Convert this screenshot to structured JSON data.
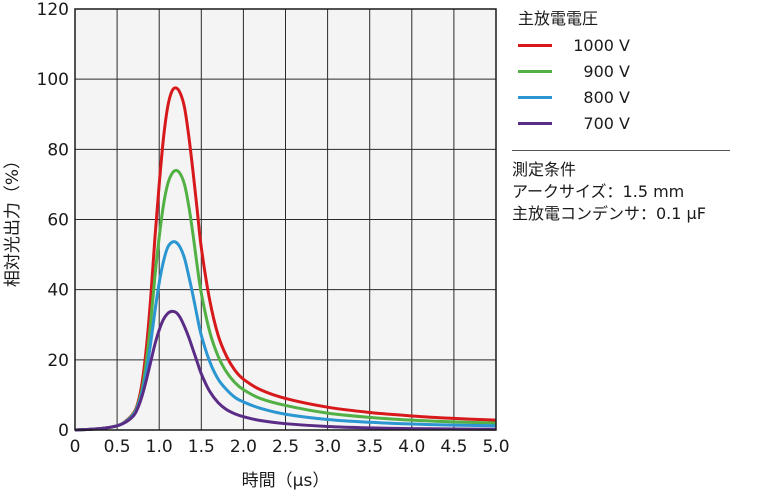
{
  "chart_data": {
    "type": "line",
    "xlabel": "時間（μs）",
    "ylabel": "相対光出力（%）",
    "xlim": [
      0,
      5.0
    ],
    "ylim": [
      0,
      120
    ],
    "xticks": [
      "0",
      "0.5",
      "1.0",
      "1.5",
      "2.0",
      "2.5",
      "3.0",
      "3.5",
      "4.0",
      "4.5",
      "5.0"
    ],
    "yticks": [
      "0",
      "20",
      "40",
      "60",
      "80",
      "100",
      "120"
    ],
    "grid": true,
    "legend_title": "主放電電圧",
    "legend_position": "right",
    "series": [
      {
        "name": "1000 V",
        "color": "#d7191c",
        "x": [
          0,
          0.3,
          0.5,
          0.6,
          0.7,
          0.75,
          0.8,
          0.85,
          0.9,
          0.95,
          1.0,
          1.05,
          1.1,
          1.15,
          1.2,
          1.25,
          1.3,
          1.35,
          1.4,
          1.45,
          1.5,
          1.6,
          1.7,
          1.8,
          1.9,
          2.0,
          2.2,
          2.5,
          3.0,
          3.5,
          4.0,
          4.5,
          5.0
        ],
        "y": [
          0,
          0.4,
          1.2,
          2.5,
          5,
          8,
          14,
          24,
          38,
          55,
          70,
          83,
          92,
          96.5,
          97.5,
          96,
          92,
          84,
          74,
          63,
          52,
          37,
          27,
          21,
          17,
          14.5,
          11.5,
          9,
          6.5,
          5,
          4,
          3.3,
          2.8
        ]
      },
      {
        "name": "900 V",
        "color": "#52b044",
        "x": [
          0,
          0.3,
          0.5,
          0.6,
          0.7,
          0.75,
          0.8,
          0.85,
          0.9,
          0.95,
          1.0,
          1.05,
          1.1,
          1.15,
          1.2,
          1.25,
          1.3,
          1.35,
          1.4,
          1.45,
          1.5,
          1.6,
          1.7,
          1.8,
          1.9,
          2.0,
          2.2,
          2.5,
          3.0,
          3.5,
          4.0,
          4.5,
          5.0
        ],
        "y": [
          0,
          0.4,
          1.2,
          2.4,
          4.8,
          7.5,
          12,
          20,
          31,
          44,
          55,
          64,
          70,
          73,
          74,
          73,
          70,
          64,
          56,
          47,
          39,
          28,
          21,
          16.5,
          13.5,
          11.5,
          9,
          7,
          4.8,
          3.6,
          2.8,
          2.3,
          2.0
        ]
      },
      {
        "name": "800 V",
        "color": "#2b96d1",
        "x": [
          0,
          0.3,
          0.5,
          0.6,
          0.7,
          0.75,
          0.8,
          0.85,
          0.9,
          0.95,
          1.0,
          1.05,
          1.1,
          1.15,
          1.2,
          1.25,
          1.3,
          1.35,
          1.4,
          1.45,
          1.5,
          1.6,
          1.7,
          1.8,
          1.9,
          2.0,
          2.2,
          2.5,
          3.0,
          3.5,
          4.0,
          4.5,
          5.0
        ],
        "y": [
          0,
          0.4,
          1.2,
          2.3,
          4.5,
          7,
          11,
          17,
          25,
          34,
          42,
          48,
          52,
          53.5,
          53.5,
          52,
          49,
          44,
          38.5,
          32.5,
          27,
          19.5,
          14.5,
          11.5,
          9.3,
          8,
          6.2,
          4.5,
          3,
          2.2,
          1.7,
          1.4,
          1.2
        ]
      },
      {
        "name": "700 V",
        "color": "#5b2c86",
        "x": [
          0,
          0.3,
          0.5,
          0.6,
          0.7,
          0.75,
          0.8,
          0.85,
          0.9,
          0.95,
          1.0,
          1.05,
          1.1,
          1.15,
          1.2,
          1.25,
          1.3,
          1.35,
          1.4,
          1.45,
          1.5,
          1.6,
          1.7,
          1.8,
          1.9,
          2.0,
          2.2,
          2.5,
          3.0,
          3.5,
          4.0,
          4.5,
          5.0
        ],
        "y": [
          0,
          0.4,
          1.2,
          2.2,
          4.2,
          6.5,
          10,
          14.5,
          19.5,
          24.5,
          28.5,
          31.5,
          33.2,
          33.8,
          33.5,
          32,
          29.5,
          26.5,
          23,
          19.5,
          16,
          11,
          7.8,
          5.8,
          4.6,
          3.8,
          2.7,
          1.8,
          1.0,
          0.6,
          0.4,
          0.3,
          0.2
        ]
      }
    ]
  },
  "conditions": {
    "title": "測定条件",
    "arc_size": "アークサイズ：1.5 mm",
    "capacitor": "主放電コンデンサ：0.1 μF"
  }
}
